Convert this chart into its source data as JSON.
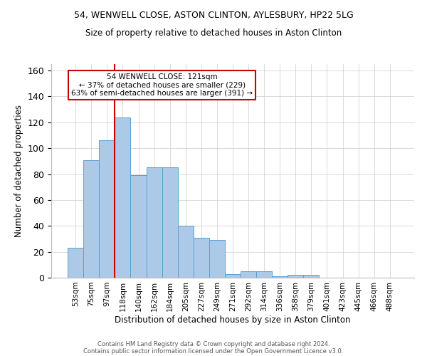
{
  "title_line1": "54, WENWELL CLOSE, ASTON CLINTON, AYLESBURY, HP22 5LG",
  "title_line2": "Size of property relative to detached houses in Aston Clinton",
  "xlabel": "Distribution of detached houses by size in Aston Clinton",
  "ylabel": "Number of detached properties",
  "footnote1": "Contains HM Land Registry data © Crown copyright and database right 2024.",
  "footnote2": "Contains public sector information licensed under the Open Government Licence v3.0.",
  "categories": [
    "53sqm",
    "75sqm",
    "97sqm",
    "118sqm",
    "140sqm",
    "162sqm",
    "184sqm",
    "205sqm",
    "227sqm",
    "249sqm",
    "271sqm",
    "292sqm",
    "314sqm",
    "336sqm",
    "358sqm",
    "379sqm",
    "401sqm",
    "423sqm",
    "445sqm",
    "466sqm",
    "488sqm"
  ],
  "values": [
    23,
    91,
    106,
    124,
    79,
    85,
    85,
    40,
    31,
    29,
    3,
    5,
    5,
    1,
    2,
    2,
    0,
    0,
    0,
    0,
    0
  ],
  "bar_color": "#adc9e8",
  "bar_edge_color": "#5a9fd4",
  "background_color": "#ffffff",
  "grid_color": "#cccccc",
  "annotation_box_text": "54 WENWELL CLOSE: 121sqm\n← 37% of detached houses are smaller (229)\n63% of semi-detached houses are larger (391) →",
  "vline_x_index": 3,
  "vline_color": "#cc0000",
  "ylim": [
    0,
    165
  ],
  "yticks": [
    0,
    20,
    40,
    60,
    80,
    100,
    120,
    140,
    160
  ]
}
